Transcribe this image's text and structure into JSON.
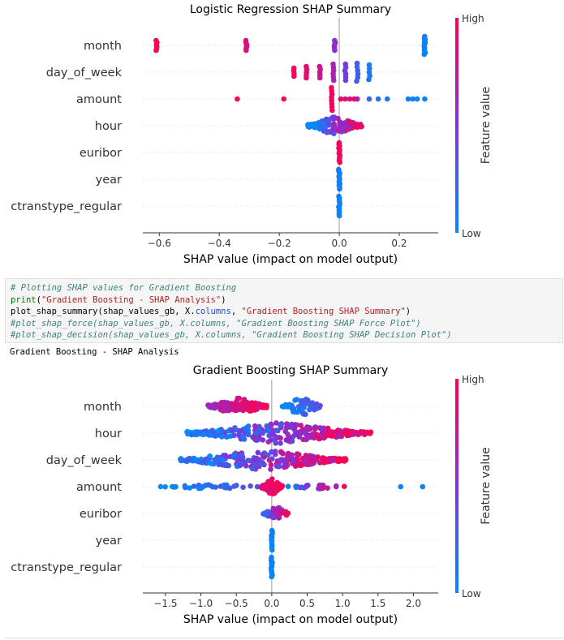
{
  "code_cell": {
    "line1": "# Plotting SHAP values for Gradient Boosting",
    "line2_fn": "print",
    "line2_arg": "\"Gradient Boosting - SHAP Analysis\"",
    "line3_a": "plot_shap_summary(shap_values_gb, X.",
    "line3_attr": "columns",
    "line3_b": ", ",
    "line3_str": "\"Gradient Boosting SHAP Summary\"",
    "line4": "#plot_shap_force(shap_values_gb, X.columns, \"Gradient Boosting SHAP Force Plot\")",
    "line5": "#plot_shap_decision(shap_values_gb, X.columns, \"Gradient Boosting SHAP Decision Plot\")"
  },
  "output_text": "Gradient Boosting - SHAP Analysis",
  "colors": {
    "high": "#ff0051",
    "low": "#008bfb"
  },
  "chart_data": [
    {
      "type": "scatter",
      "title": "Logistic Regression SHAP Summary",
      "xlabel": "SHAP value (impact on model output)",
      "colorbar_label": "Feature value",
      "colorbar_high": "High",
      "colorbar_low": "Low",
      "xticks": [
        -0.6,
        -0.4,
        -0.2,
        0.0,
        0.2
      ],
      "xtick_labels": [
        "−0.6",
        "−0.4",
        "−0.2",
        "0.0",
        "0.2"
      ],
      "xlim": [
        -0.655,
        0.33
      ],
      "features": [
        "month",
        "day_of_week",
        "amount",
        "hour",
        "euribor",
        "year",
        "ctranstype_regular"
      ],
      "series": [
        {
          "feature": "month",
          "clusters": [
            {
              "x": -0.61,
              "v": 0.97,
              "n": 6,
              "spread": 6
            },
            {
              "x": -0.31,
              "v": 0.85,
              "n": 6,
              "spread": 6
            },
            {
              "x": -0.015,
              "v": 0.55,
              "n": 6,
              "spread": 6
            },
            {
              "x": 0.285,
              "v": 0.05,
              "n": 12,
              "spread": 11
            }
          ]
        },
        {
          "feature": "day_of_week",
          "clusters": [
            {
              "x": -0.15,
              "v": 0.98,
              "n": 4,
              "spread": 5
            },
            {
              "x": -0.11,
              "v": 0.9,
              "n": 5,
              "spread": 7
            },
            {
              "x": -0.065,
              "v": 0.8,
              "n": 5,
              "spread": 7
            },
            {
              "x": -0.02,
              "v": 0.65,
              "n": 6,
              "spread": 10
            },
            {
              "x": 0.02,
              "v": 0.45,
              "n": 6,
              "spread": 10
            },
            {
              "x": 0.06,
              "v": 0.25,
              "n": 6,
              "spread": 11
            },
            {
              "x": 0.1,
              "v": 0.1,
              "n": 5,
              "spread": 9
            }
          ]
        },
        {
          "feature": "amount",
          "points": [
            {
              "x": -0.34,
              "v": 0.98
            },
            {
              "x": -0.185,
              "v": 0.95
            },
            {
              "x": 0.005,
              "v": 0.9
            },
            {
              "x": 0.02,
              "v": 0.88
            },
            {
              "x": 0.035,
              "v": 0.85
            },
            {
              "x": 0.05,
              "v": 0.9
            },
            {
              "x": 0.06,
              "v": 0.7
            },
            {
              "x": 0.1,
              "v": 0.2
            },
            {
              "x": 0.13,
              "v": 0.15
            },
            {
              "x": 0.16,
              "v": 0.12
            },
            {
              "x": 0.23,
              "v": 0.1
            },
            {
              "x": 0.245,
              "v": 0.05
            },
            {
              "x": 0.26,
              "v": 0.05
            },
            {
              "x": 0.285,
              "v": 0.05
            }
          ],
          "clusters": [
            {
              "x": -0.025,
              "v": 0.95,
              "n": 8,
              "spread": 14
            }
          ]
        },
        {
          "feature": "hour",
          "bands": [
            {
              "x0": -0.105,
              "x1": 0.075,
              "n": 140,
              "spread": 12
            }
          ]
        },
        {
          "feature": "euribor",
          "clusters": [
            {
              "x": 0.0,
              "v": 0.95,
              "n": 12,
              "spread": 12
            }
          ]
        },
        {
          "feature": "year",
          "clusters": [
            {
              "x": 0.0,
              "v": 0.05,
              "n": 12,
              "spread": 12
            }
          ]
        },
        {
          "feature": "ctranstype_regular",
          "clusters": [
            {
              "x": 0.0,
              "v": 0.05,
              "n": 12,
              "spread": 12
            }
          ]
        }
      ]
    },
    {
      "type": "scatter",
      "title": "Gradient Boosting SHAP Summary",
      "xlabel": "SHAP value (impact on model output)",
      "colorbar_label": "Feature value",
      "colorbar_high": "High",
      "colorbar_low": "Low",
      "xticks": [
        -1.5,
        -1.0,
        -0.5,
        0.0,
        0.5,
        1.0,
        1.5,
        2.0
      ],
      "xtick_labels": [
        "−1.5",
        "−1.0",
        "−0.5",
        "0.0",
        "0.5",
        "1.0",
        "1.5",
        "2.0"
      ],
      "xlim": [
        -1.82,
        2.35
      ],
      "features": [
        "month",
        "hour",
        "day_of_week",
        "amount",
        "euribor",
        "year",
        "ctranstype_regular"
      ],
      "series": [
        {
          "feature": "month",
          "bands": [
            {
              "x0": -0.9,
              "x1": -0.05,
              "n": 120,
              "spread": 11,
              "vmin": 0.6,
              "vmax": 1.0
            },
            {
              "x0": 0.15,
              "x1": 0.7,
              "n": 70,
              "spread": 13,
              "vmin": 0.0,
              "vmax": 0.35
            }
          ]
        },
        {
          "feature": "hour",
          "bands": [
            {
              "x0": -1.2,
              "x1": 1.4,
              "n": 280,
              "spread": 13,
              "vmin": 0.0,
              "vmax": 1.0
            }
          ]
        },
        {
          "feature": "day_of_week",
          "bands": [
            {
              "x0": -1.3,
              "x1": 1.05,
              "n": 240,
              "spread": 13,
              "vmin": 0.0,
              "vmax": 1.0
            }
          ]
        },
        {
          "feature": "amount",
          "bands": [
            {
              "x0": -1.6,
              "x1": -0.1,
              "n": 35,
              "spread": 3,
              "vmin": 0.0,
              "vmax": 0.35
            },
            {
              "x0": -0.15,
              "x1": 0.15,
              "n": 70,
              "spread": 11,
              "vmin": 0.85,
              "vmax": 1.0
            },
            {
              "x0": 0.2,
              "x1": 1.1,
              "n": 20,
              "spread": 3,
              "vmin": 0.0,
              "vmax": 1.0
            }
          ],
          "points": [
            {
              "x": 1.82,
              "v": 0.05
            },
            {
              "x": 2.13,
              "v": 0.05
            }
          ]
        },
        {
          "feature": "euribor",
          "bands": [
            {
              "x0": -0.12,
              "x1": 0.25,
              "n": 60,
              "spread": 9,
              "vmin": 0.2,
              "vmax": 1.0
            }
          ]
        },
        {
          "feature": "year",
          "clusters": [
            {
              "x": 0.0,
              "v": 0.05,
              "n": 12,
              "spread": 12
            }
          ]
        },
        {
          "feature": "ctranstype_regular",
          "clusters": [
            {
              "x": 0.0,
              "v": 0.05,
              "n": 12,
              "spread": 12
            }
          ]
        }
      ]
    }
  ]
}
